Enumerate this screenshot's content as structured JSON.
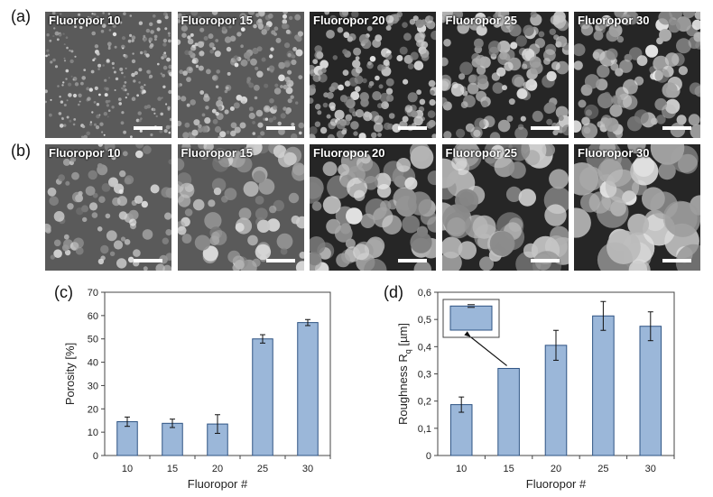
{
  "panels": {
    "a": "(a)",
    "b": "(b)",
    "c": "(c)",
    "d": "(d)"
  },
  "sem_row_a": [
    {
      "label": "Fluoropor 10"
    },
    {
      "label": "Fluoropor 15"
    },
    {
      "label": "Fluoropor 20"
    },
    {
      "label": "Fluoropor 25"
    },
    {
      "label": "Fluoropor 30"
    }
  ],
  "sem_row_b": [
    {
      "label": "Fluoropor 10"
    },
    {
      "label": "Fluoropor 15"
    },
    {
      "label": "Fluoropor 20"
    },
    {
      "label": "Fluoropor 25"
    },
    {
      "label": "Fluoropor 30"
    }
  ],
  "chart_data": [
    {
      "type": "bar",
      "categories": [
        "10",
        "15",
        "20",
        "25",
        "30"
      ],
      "values": [
        14.5,
        13.8,
        13.5,
        50.0,
        57.0
      ],
      "errors": [
        2.0,
        1.8,
        4.0,
        1.8,
        1.3
      ],
      "title": "",
      "xlabel": "Fluoropor #",
      "ylabel": "Porosity [%]",
      "ylim": [
        0,
        70
      ],
      "yticks": [
        "0",
        "10",
        "20",
        "30",
        "40",
        "50",
        "60",
        "70"
      ],
      "grid": false,
      "bar_color": "#9bb7d9"
    },
    {
      "type": "bar",
      "categories": [
        "10",
        "15",
        "20",
        "25",
        "30"
      ],
      "values": [
        0.187,
        0.32,
        0.405,
        0.513,
        0.475
      ],
      "errors": [
        0.028,
        0.0,
        0.055,
        0.053,
        0.053
      ],
      "title": "",
      "xlabel": "Fluoropor #",
      "ylabel": "Roughness R",
      "ylabel_sub": "q",
      "ylabel_unit": " [µm]",
      "ylim": [
        0,
        0.6
      ],
      "yticks": [
        "0",
        "0,1",
        "0,2",
        "0,3",
        "0,4",
        "0,5",
        "0,6"
      ],
      "grid": false,
      "bar_color": "#9bb7d9",
      "inset": {
        "value": 0.32,
        "error": 0.004
      }
    }
  ]
}
